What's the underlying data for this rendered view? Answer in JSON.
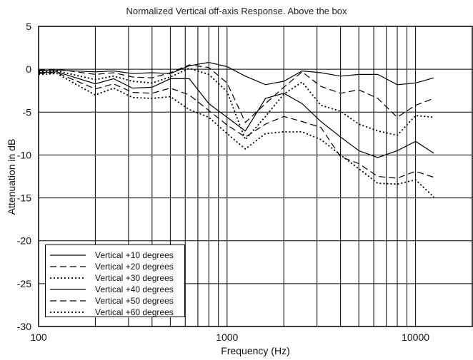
{
  "chart_data": {
    "type": "line",
    "title": "Normalized Vertical off-axis Response. Above the box",
    "xlabel": "Frequency (Hz)",
    "ylabel": "Attenuation in dB",
    "xscale": "log",
    "xlim": [
      100,
      20000
    ],
    "ylim": [
      -30,
      5
    ],
    "grid": true,
    "legend_position": "bottom-left",
    "x_ticks": [
      "100",
      "1000",
      "10000"
    ],
    "y_ticks": [
      "5",
      "0",
      "-5",
      "-10",
      "-15",
      "-20",
      "-25",
      "-30"
    ],
    "x": [
      100,
      125,
      200,
      250,
      315,
      400,
      500,
      630,
      800,
      1000,
      1250,
      1600,
      2000,
      2500,
      3150,
      4000,
      5000,
      6300,
      8000,
      10000,
      12500
    ],
    "series": [
      {
        "name": "Vertical +10 degrees",
        "style": "solid",
        "values": [
          -0.2,
          -0.1,
          -0.3,
          -0.2,
          -0.5,
          -0.4,
          -0.5,
          0.4,
          0.8,
          0.3,
          -0.8,
          -1.8,
          -1.4,
          -0.2,
          -0.4,
          -0.8,
          -0.6,
          -0.6,
          -1.8,
          -1.6,
          -1.0
        ]
      },
      {
        "name": "Vertical +20 degrees",
        "style": "dashed",
        "values": [
          -0.1,
          0.0,
          -0.6,
          -0.4,
          -0.9,
          -1.0,
          -0.4,
          0.5,
          0.2,
          -1.6,
          -6.2,
          -4.0,
          -2.1,
          -0.3,
          -2.0,
          -2.8,
          -2.4,
          -3.4,
          -5.6,
          -4.2,
          -3.4
        ]
      },
      {
        "name": "Vertical +30 degrees",
        "style": "dotted",
        "values": [
          -0.3,
          -0.2,
          -1.2,
          -0.8,
          -1.4,
          -1.6,
          -0.9,
          0.1,
          -0.6,
          -2.6,
          -8.2,
          -5.5,
          -2.9,
          -1.5,
          -4.2,
          -4.9,
          -6.4,
          -7.2,
          -7.7,
          -5.4,
          -5.6
        ]
      },
      {
        "name": "Vertical +40 degrees",
        "style": "solid",
        "values": [
          -0.4,
          -0.3,
          -1.7,
          -1.1,
          -2.2,
          -2.1,
          -1.1,
          -1.1,
          -4.0,
          -5.6,
          -7.2,
          -3.4,
          -2.8,
          -4.0,
          -6.1,
          -7.9,
          -9.5,
          -10.3,
          -9.5,
          -8.4,
          -9.8
        ]
      },
      {
        "name": "Vertical +50 degrees",
        "style": "dashed",
        "values": [
          -0.5,
          -0.4,
          -2.3,
          -1.7,
          -2.7,
          -2.8,
          -2.2,
          -3.0,
          -4.8,
          -6.5,
          -7.9,
          -6.4,
          -5.5,
          -6.1,
          -6.8,
          -10.2,
          -11.0,
          -12.5,
          -12.7,
          -11.9,
          -12.6
        ]
      },
      {
        "name": "Vertical +60 degrees",
        "style": "dotted",
        "values": [
          -0.6,
          -0.5,
          -3.0,
          -2.2,
          -3.3,
          -3.4,
          -3.2,
          -4.7,
          -5.6,
          -7.5,
          -9.3,
          -7.5,
          -7.3,
          -7.3,
          -8.2,
          -10.0,
          -11.6,
          -13.3,
          -13.4,
          -12.9,
          -14.9
        ]
      }
    ]
  }
}
